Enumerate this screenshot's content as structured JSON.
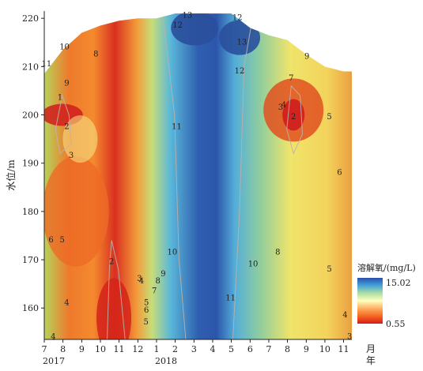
{
  "chart_data": {
    "type": "heatmap",
    "title": "",
    "xlabel": "月",
    "xlabel_suffix": "年",
    "ylabel": "水位/m",
    "x_tick_labels": [
      "7",
      "8",
      "9",
      "10",
      "11",
      "12",
      "1",
      "2",
      "3",
      "4",
      "5",
      "6",
      "7",
      "8",
      "9",
      "10",
      "11"
    ],
    "x_ticks": [
      2017.5,
      2017.583,
      2017.667,
      2017.75,
      2017.833,
      2017.917,
      2018.0,
      2018.083,
      2018.167,
      2018.25,
      2018.333,
      2018.417,
      2018.5,
      2018.583,
      2018.667,
      2018.75,
      2018.833
    ],
    "year_labels": [
      {
        "x": 2017.5,
        "label": "2017"
      },
      {
        "x": 2018.0,
        "label": "2018"
      }
    ],
    "xlim": [
      2017.5,
      2018.87
    ],
    "y_ticks": [
      160,
      170,
      180,
      190,
      200,
      210,
      220
    ],
    "ylim": [
      153.5,
      221.5
    ],
    "colorbar": {
      "label": "溶解氧/(mg/L)",
      "max": 15.02,
      "min": 0.55,
      "max_label": "15.02",
      "min_label": "0.55"
    },
    "water_level_top": [
      {
        "x": 2017.5,
        "y": 208.5
      },
      {
        "x": 2017.583,
        "y": 213.5
      },
      {
        "x": 2017.667,
        "y": 217.0
      },
      {
        "x": 2017.75,
        "y": 218.5
      },
      {
        "x": 2017.833,
        "y": 219.5
      },
      {
        "x": 2017.917,
        "y": 220.0
      },
      {
        "x": 2018.0,
        "y": 220.0
      },
      {
        "x": 2018.083,
        "y": 221.0
      },
      {
        "x": 2018.167,
        "y": 221.0
      },
      {
        "x": 2018.25,
        "y": 221.0
      },
      {
        "x": 2018.333,
        "y": 221.0
      },
      {
        "x": 2018.417,
        "y": 218.0
      },
      {
        "x": 2018.5,
        "y": 216.5
      },
      {
        "x": 2018.583,
        "y": 215.5
      },
      {
        "x": 2018.667,
        "y": 212.5
      },
      {
        "x": 2018.75,
        "y": 210.0
      },
      {
        "x": 2018.833,
        "y": 209.0
      },
      {
        "x": 2018.87,
        "y": 209.0
      }
    ],
    "contour_labels": [
      {
        "x": 2017.51,
        "y": 210.5,
        "value": "11"
      },
      {
        "x": 2017.59,
        "y": 214.0,
        "value": "10"
      },
      {
        "x": 2017.6,
        "y": 206.5,
        "value": "9"
      },
      {
        "x": 2017.73,
        "y": 212.5,
        "value": "8"
      },
      {
        "x": 2017.57,
        "y": 203.5,
        "value": "1"
      },
      {
        "x": 2017.6,
        "y": 197.5,
        "value": "2"
      },
      {
        "x": 2017.62,
        "y": 191.5,
        "value": "3"
      },
      {
        "x": 2017.53,
        "y": 174.0,
        "value": "6"
      },
      {
        "x": 2017.58,
        "y": 174.0,
        "value": "5"
      },
      {
        "x": 2017.6,
        "y": 161.0,
        "value": "4"
      },
      {
        "x": 2017.54,
        "y": 154.0,
        "value": "4"
      },
      {
        "x": 2017.8,
        "y": 169.5,
        "value": "2"
      },
      {
        "x": 2017.924,
        "y": 166.0,
        "value": "3"
      },
      {
        "x": 2017.933,
        "y": 165.5,
        "value": "4"
      },
      {
        "x": 2017.955,
        "y": 161.0,
        "value": "5"
      },
      {
        "x": 2017.953,
        "y": 157.0,
        "value": "5"
      },
      {
        "x": 2017.955,
        "y": 159.5,
        "value": "6"
      },
      {
        "x": 2017.99,
        "y": 163.5,
        "value": "7"
      },
      {
        "x": 2018.006,
        "y": 165.5,
        "value": "8"
      },
      {
        "x": 2018.03,
        "y": 167.0,
        "value": "9"
      },
      {
        "x": 2018.07,
        "y": 171.5,
        "value": "10"
      },
      {
        "x": 2018.09,
        "y": 197.5,
        "value": "11"
      },
      {
        "x": 2018.094,
        "y": 218.5,
        "value": "12"
      },
      {
        "x": 2018.137,
        "y": 220.5,
        "value": "13"
      },
      {
        "x": 2018.36,
        "y": 220.0,
        "value": "12"
      },
      {
        "x": 2018.38,
        "y": 215.0,
        "value": "13"
      },
      {
        "x": 2018.37,
        "y": 209.0,
        "value": "12"
      },
      {
        "x": 2018.33,
        "y": 162.0,
        "value": "11"
      },
      {
        "x": 2018.43,
        "y": 169.0,
        "value": "10"
      },
      {
        "x": 2018.54,
        "y": 171.5,
        "value": "8"
      },
      {
        "x": 2018.6,
        "y": 207.5,
        "value": "7"
      },
      {
        "x": 2018.67,
        "y": 212.0,
        "value": "9"
      },
      {
        "x": 2018.553,
        "y": 201.5,
        "value": "3"
      },
      {
        "x": 2018.567,
        "y": 202.0,
        "value": "4"
      },
      {
        "x": 2018.61,
        "y": 199.5,
        "value": "2"
      },
      {
        "x": 2018.77,
        "y": 199.5,
        "value": "5"
      },
      {
        "x": 2018.815,
        "y": 188.0,
        "value": "6"
      },
      {
        "x": 2018.77,
        "y": 168.0,
        "value": "5"
      },
      {
        "x": 2018.84,
        "y": 158.5,
        "value": "4"
      },
      {
        "x": 2018.86,
        "y": 154.0,
        "value": "3"
      }
    ]
  }
}
